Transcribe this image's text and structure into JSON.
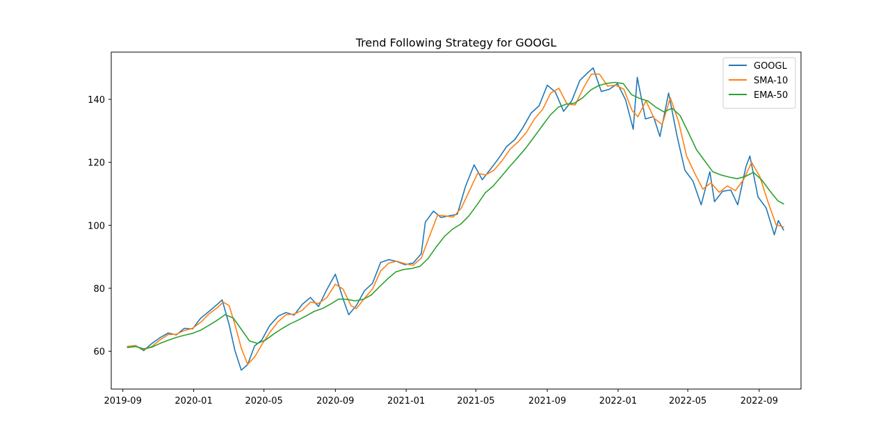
{
  "chart_data": {
    "type": "line",
    "title": "Trend Following Strategy for GOOGL",
    "xlabel": "",
    "ylabel": "",
    "xlim": [
      "2019-08-12",
      "2022-11-12"
    ],
    "ylim": [
      48,
      155
    ],
    "grid": false,
    "legend_position": "top-right",
    "x_ticks": [
      "2019-09-01",
      "2020-01-01",
      "2020-05-01",
      "2020-09-01",
      "2021-01-01",
      "2021-05-01",
      "2021-09-01",
      "2022-01-01",
      "2022-05-01",
      "2022-09-01"
    ],
    "x_tick_labels": [
      "2019-09",
      "2020-01",
      "2020-05",
      "2020-09",
      "2021-01",
      "2021-05",
      "2021-09",
      "2022-01",
      "2022-05",
      "2022-09"
    ],
    "y_ticks": [
      60,
      80,
      100,
      120,
      140
    ],
    "y_tick_labels": [
      "60",
      "80",
      "100",
      "120",
      "140"
    ],
    "series": [
      {
        "name": "GOOGL",
        "color": "#1f77b4",
        "points": [
          [
            "2019-09-09",
            61.5
          ],
          [
            "2019-09-23",
            61.8
          ],
          [
            "2019-10-07",
            60.2
          ],
          [
            "2019-10-21",
            62.5
          ],
          [
            "2019-11-04",
            64.3
          ],
          [
            "2019-11-18",
            65.8
          ],
          [
            "2019-12-02",
            65.2
          ],
          [
            "2019-12-16",
            67.3
          ],
          [
            "2019-12-30",
            67.1
          ],
          [
            "2020-01-13",
            70.5
          ],
          [
            "2020-01-27",
            72.6
          ],
          [
            "2020-02-10",
            74.8
          ],
          [
            "2020-02-19",
            76.3
          ],
          [
            "2020-03-02",
            68.5
          ],
          [
            "2020-03-12",
            60.2
          ],
          [
            "2020-03-23",
            54.0
          ],
          [
            "2020-04-03",
            55.8
          ],
          [
            "2020-04-15",
            61.7
          ],
          [
            "2020-04-27",
            63.5
          ],
          [
            "2020-05-11",
            68.2
          ],
          [
            "2020-05-26",
            71.2
          ],
          [
            "2020-06-08",
            72.3
          ],
          [
            "2020-06-22",
            71.5
          ],
          [
            "2020-07-06",
            74.9
          ],
          [
            "2020-07-20",
            77.1
          ],
          [
            "2020-08-03",
            74.2
          ],
          [
            "2020-08-17",
            79.5
          ],
          [
            "2020-09-01",
            84.5
          ],
          [
            "2020-09-14",
            76.8
          ],
          [
            "2020-09-24",
            71.6
          ],
          [
            "2020-10-07",
            74.5
          ],
          [
            "2020-10-21",
            79.2
          ],
          [
            "2020-11-04",
            81.6
          ],
          [
            "2020-11-18",
            88.2
          ],
          [
            "2020-12-02",
            89.1
          ],
          [
            "2020-12-16",
            88.5
          ],
          [
            "2020-12-30",
            87.5
          ],
          [
            "2021-01-13",
            88.0
          ],
          [
            "2021-01-27",
            91.0
          ],
          [
            "2021-02-03",
            101.0
          ],
          [
            "2021-02-17",
            104.5
          ],
          [
            "2021-03-02",
            102.5
          ],
          [
            "2021-03-16",
            103.0
          ],
          [
            "2021-03-30",
            103.5
          ],
          [
            "2021-04-13",
            112.3
          ],
          [
            "2021-04-28",
            119.2
          ],
          [
            "2021-05-12",
            114.5
          ],
          [
            "2021-05-26",
            117.8
          ],
          [
            "2021-06-09",
            121.2
          ],
          [
            "2021-06-23",
            125.0
          ],
          [
            "2021-07-07",
            127.2
          ],
          [
            "2021-07-21",
            131.0
          ],
          [
            "2021-08-04",
            135.6
          ],
          [
            "2021-08-18",
            138.0
          ],
          [
            "2021-09-01",
            144.5
          ],
          [
            "2021-09-15",
            142.3
          ],
          [
            "2021-09-29",
            136.2
          ],
          [
            "2021-10-13",
            139.5
          ],
          [
            "2021-10-27",
            146.0
          ],
          [
            "2021-11-10",
            148.5
          ],
          [
            "2021-11-19",
            150.0
          ],
          [
            "2021-12-03",
            142.5
          ],
          [
            "2021-12-17",
            143.2
          ],
          [
            "2021-12-31",
            145.0
          ],
          [
            "2022-01-14",
            139.8
          ],
          [
            "2022-01-27",
            130.5
          ],
          [
            "2022-02-03",
            147.0
          ],
          [
            "2022-02-17",
            133.8
          ],
          [
            "2022-03-03",
            134.5
          ],
          [
            "2022-03-14",
            128.2
          ],
          [
            "2022-03-29",
            142.0
          ],
          [
            "2022-04-12",
            128.8
          ],
          [
            "2022-04-26",
            117.5
          ],
          [
            "2022-05-10",
            114.0
          ],
          [
            "2022-05-24",
            106.5
          ],
          [
            "2022-06-08",
            117.0
          ],
          [
            "2022-06-16",
            107.5
          ],
          [
            "2022-06-30",
            110.8
          ],
          [
            "2022-07-14",
            111.2
          ],
          [
            "2022-07-26",
            106.5
          ],
          [
            "2022-08-09",
            118.5
          ],
          [
            "2022-08-16",
            122.0
          ],
          [
            "2022-08-30",
            109.0
          ],
          [
            "2022-09-13",
            105.5
          ],
          [
            "2022-09-27",
            97.0
          ],
          [
            "2022-10-04",
            101.5
          ],
          [
            "2022-10-13",
            98.5
          ]
        ]
      },
      {
        "name": "SMA-10",
        "color": "#ff7f0e",
        "points": [
          [
            "2019-09-09",
            61.6
          ],
          [
            "2019-09-23",
            61.7
          ],
          [
            "2019-10-07",
            60.5
          ],
          [
            "2019-10-21",
            61.5
          ],
          [
            "2019-11-04",
            63.6
          ],
          [
            "2019-11-18",
            65.3
          ],
          [
            "2019-12-02",
            65.4
          ],
          [
            "2019-12-16",
            66.6
          ],
          [
            "2019-12-30",
            67.3
          ],
          [
            "2020-01-13",
            69.2
          ],
          [
            "2020-01-27",
            71.8
          ],
          [
            "2020-02-10",
            73.8
          ],
          [
            "2020-02-21",
            75.6
          ],
          [
            "2020-03-02",
            74.5
          ],
          [
            "2020-03-12",
            68.5
          ],
          [
            "2020-03-23",
            61.0
          ],
          [
            "2020-04-03",
            55.8
          ],
          [
            "2020-04-15",
            58.2
          ],
          [
            "2020-04-27",
            62.0
          ],
          [
            "2020-05-11",
            66.0
          ],
          [
            "2020-05-26",
            69.5
          ],
          [
            "2020-06-08",
            71.6
          ],
          [
            "2020-06-22",
            71.8
          ],
          [
            "2020-07-06",
            73.0
          ],
          [
            "2020-07-20",
            75.6
          ],
          [
            "2020-08-03",
            75.2
          ],
          [
            "2020-08-17",
            77.0
          ],
          [
            "2020-09-01",
            81.3
          ],
          [
            "2020-09-14",
            79.8
          ],
          [
            "2020-09-28",
            74.5
          ],
          [
            "2020-10-07",
            73.5
          ],
          [
            "2020-10-21",
            76.8
          ],
          [
            "2020-11-04",
            79.8
          ],
          [
            "2020-11-18",
            85.5
          ],
          [
            "2020-12-02",
            88.0
          ],
          [
            "2020-12-16",
            88.6
          ],
          [
            "2020-12-30",
            87.8
          ],
          [
            "2021-01-13",
            87.3
          ],
          [
            "2021-01-27",
            89.6
          ],
          [
            "2021-02-10",
            96.5
          ],
          [
            "2021-02-24",
            103.2
          ],
          [
            "2021-03-09",
            103.0
          ],
          [
            "2021-03-23",
            102.6
          ],
          [
            "2021-04-06",
            105.5
          ],
          [
            "2021-04-20",
            111.0
          ],
          [
            "2021-05-04",
            116.5
          ],
          [
            "2021-05-18",
            116.0
          ],
          [
            "2021-06-01",
            117.5
          ],
          [
            "2021-06-15",
            120.5
          ],
          [
            "2021-06-29",
            124.2
          ],
          [
            "2021-07-13",
            126.5
          ],
          [
            "2021-07-27",
            129.5
          ],
          [
            "2021-08-10",
            133.8
          ],
          [
            "2021-08-24",
            136.8
          ],
          [
            "2021-09-07",
            142.0
          ],
          [
            "2021-09-21",
            143.5
          ],
          [
            "2021-10-05",
            138.5
          ],
          [
            "2021-10-19",
            138.2
          ],
          [
            "2021-11-02",
            143.5
          ],
          [
            "2021-11-16",
            148.0
          ],
          [
            "2021-11-30",
            148.0
          ],
          [
            "2021-12-14",
            144.2
          ],
          [
            "2021-12-28",
            144.5
          ],
          [
            "2022-01-11",
            143.2
          ],
          [
            "2022-01-25",
            136.5
          ],
          [
            "2022-02-04",
            134.5
          ],
          [
            "2022-02-18",
            139.5
          ],
          [
            "2022-03-04",
            134.0
          ],
          [
            "2022-03-18",
            132.0
          ],
          [
            "2022-04-01",
            140.5
          ],
          [
            "2022-04-15",
            133.0
          ],
          [
            "2022-04-29",
            122.0
          ],
          [
            "2022-05-13",
            116.5
          ],
          [
            "2022-05-27",
            111.5
          ],
          [
            "2022-06-10",
            113.5
          ],
          [
            "2022-06-24",
            110.5
          ],
          [
            "2022-07-08",
            112.5
          ],
          [
            "2022-07-22",
            111.0
          ],
          [
            "2022-08-05",
            114.5
          ],
          [
            "2022-08-19",
            120.0
          ],
          [
            "2022-09-02",
            115.5
          ],
          [
            "2022-09-16",
            107.5
          ],
          [
            "2022-09-30",
            100.2
          ],
          [
            "2022-10-13",
            99.5
          ]
        ]
      },
      {
        "name": "EMA-50",
        "color": "#2ca02c",
        "points": [
          [
            "2019-09-09",
            61.2
          ],
          [
            "2019-09-23",
            61.5
          ],
          [
            "2019-10-07",
            60.8
          ],
          [
            "2019-10-21",
            61.3
          ],
          [
            "2019-11-04",
            62.5
          ],
          [
            "2019-11-18",
            63.5
          ],
          [
            "2019-12-02",
            64.4
          ],
          [
            "2019-12-16",
            65.1
          ],
          [
            "2019-12-30",
            65.7
          ],
          [
            "2020-01-13",
            66.7
          ],
          [
            "2020-01-27",
            68.2
          ],
          [
            "2020-02-10",
            69.8
          ],
          [
            "2020-02-24",
            71.6
          ],
          [
            "2020-03-09",
            70.6
          ],
          [
            "2020-03-23",
            67.0
          ],
          [
            "2020-04-06",
            63.3
          ],
          [
            "2020-04-20",
            62.5
          ],
          [
            "2020-05-04",
            63.6
          ],
          [
            "2020-05-18",
            65.5
          ],
          [
            "2020-06-01",
            67.2
          ],
          [
            "2020-06-15",
            68.7
          ],
          [
            "2020-06-29",
            69.9
          ],
          [
            "2020-07-13",
            71.3
          ],
          [
            "2020-07-27",
            72.7
          ],
          [
            "2020-08-10",
            73.6
          ],
          [
            "2020-08-24",
            75.0
          ],
          [
            "2020-09-07",
            76.6
          ],
          [
            "2020-09-21",
            76.5
          ],
          [
            "2020-10-05",
            76.0
          ],
          [
            "2020-10-19",
            76.5
          ],
          [
            "2020-11-02",
            77.9
          ],
          [
            "2020-11-16",
            80.5
          ],
          [
            "2020-11-30",
            83.0
          ],
          [
            "2020-12-14",
            85.2
          ],
          [
            "2020-12-28",
            86.0
          ],
          [
            "2021-01-11",
            86.3
          ],
          [
            "2021-01-25",
            87.0
          ],
          [
            "2021-02-08",
            89.5
          ],
          [
            "2021-02-22",
            93.2
          ],
          [
            "2021-03-08",
            96.5
          ],
          [
            "2021-03-22",
            98.8
          ],
          [
            "2021-04-05",
            100.4
          ],
          [
            "2021-04-19",
            103.0
          ],
          [
            "2021-05-03",
            106.5
          ],
          [
            "2021-05-17",
            110.3
          ],
          [
            "2021-05-31",
            112.5
          ],
          [
            "2021-06-14",
            115.5
          ],
          [
            "2021-06-28",
            118.6
          ],
          [
            "2021-07-12",
            121.5
          ],
          [
            "2021-07-26",
            124.5
          ],
          [
            "2021-08-09",
            128.0
          ],
          [
            "2021-08-23",
            131.5
          ],
          [
            "2021-09-06",
            135.0
          ],
          [
            "2021-09-20",
            137.5
          ],
          [
            "2021-10-04",
            138.5
          ],
          [
            "2021-10-18",
            138.8
          ],
          [
            "2021-11-01",
            140.5
          ],
          [
            "2021-11-15",
            143.0
          ],
          [
            "2021-11-29",
            144.4
          ],
          [
            "2021-12-13",
            145.1
          ],
          [
            "2021-12-27",
            145.4
          ],
          [
            "2022-01-10",
            145.0
          ],
          [
            "2022-01-24",
            141.5
          ],
          [
            "2022-02-07",
            140.3
          ],
          [
            "2022-02-21",
            139.5
          ],
          [
            "2022-03-07",
            137.5
          ],
          [
            "2022-03-21",
            136.0
          ],
          [
            "2022-04-04",
            137.2
          ],
          [
            "2022-04-18",
            134.8
          ],
          [
            "2022-05-02",
            129.5
          ],
          [
            "2022-05-16",
            124.0
          ],
          [
            "2022-05-30",
            120.5
          ],
          [
            "2022-06-13",
            117.0
          ],
          [
            "2022-06-27",
            116.0
          ],
          [
            "2022-07-11",
            115.3
          ],
          [
            "2022-07-25",
            114.8
          ],
          [
            "2022-08-08",
            115.5
          ],
          [
            "2022-08-22",
            116.8
          ],
          [
            "2022-09-05",
            114.5
          ],
          [
            "2022-09-19",
            111.0
          ],
          [
            "2022-10-03",
            107.8
          ],
          [
            "2022-10-13",
            106.8
          ]
        ]
      }
    ]
  }
}
